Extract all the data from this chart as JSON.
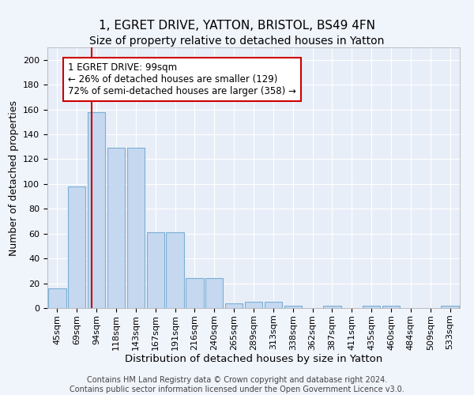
{
  "title": "1, EGRET DRIVE, YATTON, BRISTOL, BS49 4FN",
  "subtitle": "Size of property relative to detached houses in Yatton",
  "xlabel": "Distribution of detached houses by size in Yatton",
  "ylabel": "Number of detached properties",
  "bin_labels": [
    "45sqm",
    "69sqm",
    "94sqm",
    "118sqm",
    "143sqm",
    "167sqm",
    "191sqm",
    "216sqm",
    "240sqm",
    "265sqm",
    "289sqm",
    "313sqm",
    "338sqm",
    "362sqm",
    "387sqm",
    "411sqm",
    "435sqm",
    "460sqm",
    "484sqm",
    "509sqm",
    "533sqm"
  ],
  "bar_values": [
    16,
    98,
    158,
    129,
    129,
    61,
    61,
    24,
    24,
    4,
    5,
    5,
    2,
    0,
    2,
    0,
    2,
    2,
    0,
    0,
    2
  ],
  "bar_color": "#c5d8f0",
  "bar_edgecolor": "#7bafd4",
  "red_line_color": "#cc0000",
  "annotation_text": "1 EGRET DRIVE: 99sqm\n← 26% of detached houses are smaller (129)\n72% of semi-detached houses are larger (358) →",
  "annotation_box_color": "#ffffff",
  "annotation_box_edgecolor": "#cc0000",
  "ylim": [
    0,
    210
  ],
  "yticks": [
    0,
    20,
    40,
    60,
    80,
    100,
    120,
    140,
    160,
    180,
    200
  ],
  "background_color": "#e8eef8",
  "fig_facecolor": "#f0f4fb",
  "footer_text": "Contains HM Land Registry data © Crown copyright and database right 2024.\nContains public sector information licensed under the Open Government Licence v3.0.",
  "title_fontsize": 11,
  "subtitle_fontsize": 10,
  "xlabel_fontsize": 9.5,
  "ylabel_fontsize": 9,
  "tick_fontsize": 8,
  "annotation_fontsize": 8.5,
  "footer_fontsize": 7
}
